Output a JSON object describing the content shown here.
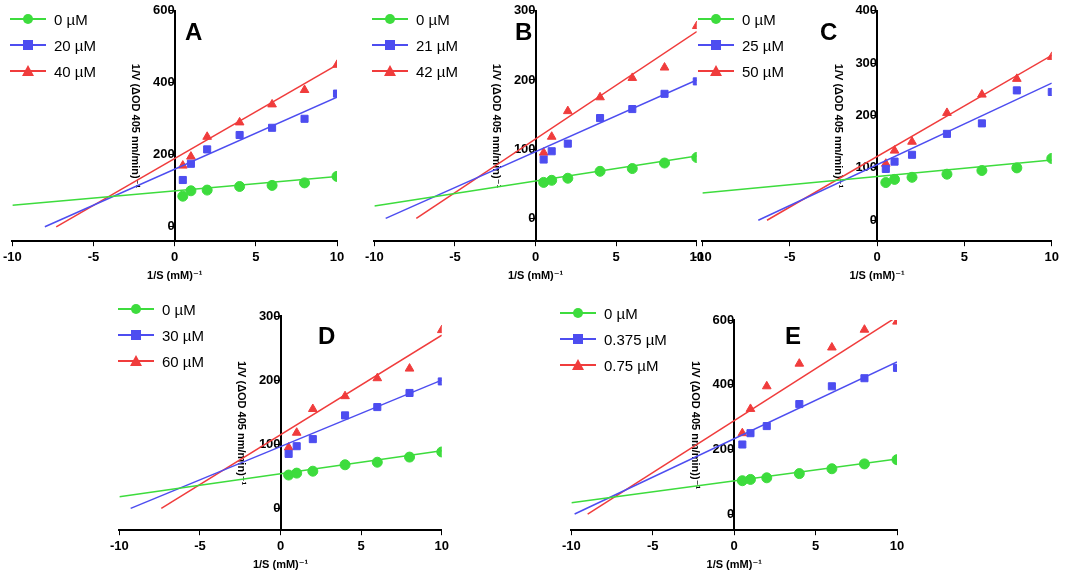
{
  "chart_data": [
    {
      "type": "scatter",
      "title": "A",
      "x_label": "1/S (mM)⁻¹",
      "y_label": "1/V (ΔOD 405 nm/min)⁻¹",
      "xlim": [
        -10,
        10
      ],
      "ylim": [
        -40,
        600
      ],
      "xticks": [
        -10,
        -5,
        0,
        5,
        10
      ],
      "yticks": [
        0,
        200,
        400,
        600
      ],
      "grid": false,
      "legend": "top-left",
      "x": [
        0.5,
        1,
        2,
        4,
        6,
        8,
        10
      ],
      "series": [
        {
          "name": "0 µM",
          "color": "#3ddc3d",
          "marker": "circle",
          "values": [
            85,
            100,
            102,
            112,
            115,
            122,
            140
          ],
          "fit_line": {
            "x": [
              -10,
              10
            ],
            "y": [
              60,
              140
            ]
          }
        },
        {
          "name": "20 µM",
          "color": "#4d4df0",
          "marker": "square",
          "values": [
            130,
            175,
            215,
            255,
            275,
            300,
            370
          ],
          "fit_line": {
            "x": [
              -8,
              10
            ],
            "y": [
              0,
              360
            ]
          }
        },
        {
          "name": "40 µM",
          "color": "#f03c3c",
          "marker": "triangle",
          "values": [
            170,
            195,
            250,
            290,
            340,
            380,
            450
          ],
          "fit_line": {
            "x": [
              -7.3,
              10
            ],
            "y": [
              0,
              450
            ]
          }
        }
      ]
    },
    {
      "type": "scatter",
      "title": "B",
      "x_label": "1/S (mM)⁻¹",
      "y_label": "1/V (ΔOD 405 nm/min)⁻¹",
      "xlim": [
        -10,
        10
      ],
      "ylim": [
        -33,
        300
      ],
      "xticks": [
        -10,
        -5,
        0,
        5,
        10
      ],
      "yticks": [
        0,
        100,
        200,
        300
      ],
      "grid": false,
      "legend": "top-left",
      "x": [
        0.5,
        1,
        2,
        4,
        6,
        8,
        10
      ],
      "series": [
        {
          "name": "0 µM",
          "color": "#3ddc3d",
          "marker": "circle",
          "values": [
            52,
            55,
            58,
            68,
            72,
            80,
            88
          ],
          "fit_line": {
            "x": [
              -10,
              10
            ],
            "y": [
              18,
              90
            ]
          }
        },
        {
          "name": "21 µM",
          "color": "#4d4df0",
          "marker": "square",
          "values": [
            85,
            97,
            108,
            145,
            158,
            180,
            198
          ],
          "fit_line": {
            "x": [
              -9.3,
              10
            ],
            "y": [
              0,
              200
            ]
          }
        },
        {
          "name": "42 µM",
          "color": "#f03c3c",
          "marker": "triangle",
          "values": [
            95,
            118,
            155,
            175,
            203,
            218,
            278
          ],
          "fit_line": {
            "x": [
              -7.4,
              10
            ],
            "y": [
              0,
              270
            ]
          }
        }
      ]
    },
    {
      "type": "scatter",
      "title": "C",
      "x_label": "1/S (mM)⁻¹",
      "y_label": "1/V (ΔOD 405 nm/min)⁻¹",
      "xlim": [
        -10,
        10
      ],
      "ylim": [
        -40,
        400
      ],
      "xticks": [
        -10,
        -5,
        0,
        5,
        10
      ],
      "yticks": [
        0,
        100,
        200,
        300,
        400
      ],
      "grid": false,
      "legend": "top-left",
      "x": [
        0.5,
        1,
        2,
        4,
        6,
        8,
        10
      ],
      "series": [
        {
          "name": "0 µM",
          "color": "#3ddc3d",
          "marker": "circle",
          "values": [
            72,
            78,
            82,
            88,
            95,
            100,
            118
          ],
          "fit_line": {
            "x": [
              -10,
              10
            ],
            "y": [
              52,
              115
            ]
          }
        },
        {
          "name": "25 µM",
          "color": "#4d4df0",
          "marker": "square",
          "values": [
            98,
            112,
            125,
            165,
            185,
            248,
            245
          ],
          "fit_line": {
            "x": [
              -6.8,
              10
            ],
            "y": [
              0,
              262
            ]
          }
        },
        {
          "name": "50 µM",
          "color": "#f03c3c",
          "marker": "triangle",
          "values": [
            108,
            133,
            150,
            205,
            240,
            270,
            312
          ],
          "fit_line": {
            "x": [
              -6.3,
              10
            ],
            "y": [
              0,
              315
            ]
          }
        }
      ]
    },
    {
      "type": "scatter",
      "title": "D",
      "x_label": "1/S (mM)⁻¹",
      "y_label": "1/V (ΔOD 405 nm/min)⁻¹",
      "xlim": [
        -10,
        10
      ],
      "ylim": [
        -34,
        300
      ],
      "xticks": [
        -10,
        -5,
        0,
        5,
        10
      ],
      "yticks": [
        0,
        100,
        200,
        300
      ],
      "grid": false,
      "legend": "top-left",
      "x": [
        0.5,
        1,
        2,
        4,
        6,
        8,
        10
      ],
      "series": [
        {
          "name": "0 µM",
          "color": "#3ddc3d",
          "marker": "circle",
          "values": [
            52,
            55,
            58,
            68,
            72,
            80,
            88
          ],
          "fit_line": {
            "x": [
              -10,
              10
            ],
            "y": [
              18,
              90
            ]
          }
        },
        {
          "name": "30 µM",
          "color": "#4d4df0",
          "marker": "square",
          "values": [
            85,
            97,
            108,
            145,
            158,
            180,
            198
          ],
          "fit_line": {
            "x": [
              -9.3,
              10
            ],
            "y": [
              0,
              200
            ]
          }
        },
        {
          "name": "60 µM",
          "color": "#f03c3c",
          "marker": "triangle",
          "values": [
            95,
            118,
            155,
            175,
            203,
            218,
            278
          ],
          "fit_line": {
            "x": [
              -7.4,
              10
            ],
            "y": [
              0,
              270
            ]
          }
        }
      ]
    },
    {
      "type": "scatter",
      "title": "E",
      "x_label": "1/S (mM)⁻¹",
      "y_label": "1/V (ΔOD 405 nm/min))⁻¹",
      "xlim": [
        -10,
        10
      ],
      "ylim": [
        -50,
        600
      ],
      "xticks": [
        -10,
        -5,
        0,
        5,
        10
      ],
      "yticks": [
        0,
        200,
        400,
        600
      ],
      "grid": false,
      "legend": "top-left",
      "x": [
        0.5,
        1,
        2,
        4,
        6,
        8,
        10
      ],
      "series": [
        {
          "name": "0 µM",
          "color": "#3ddc3d",
          "marker": "circle",
          "values": [
            103,
            107,
            112,
            125,
            140,
            155,
            168
          ],
          "fit_line": {
            "x": [
              -10,
              10
            ],
            "y": [
              35,
              170
            ]
          }
        },
        {
          "name": "0.375 µM",
          "color": "#4d4df0",
          "marker": "square",
          "values": [
            215,
            250,
            272,
            340,
            395,
            420,
            452
          ],
          "fit_line": {
            "x": [
              -9.8,
              10
            ],
            "y": [
              0,
              470
            ]
          }
        },
        {
          "name": "0.75 µM",
          "color": "#f03c3c",
          "marker": "triangle",
          "values": [
            250,
            325,
            395,
            465,
            515,
            570,
            595
          ],
          "fit_line": {
            "x": [
              -9,
              10
            ],
            "y": [
              0,
              610
            ]
          }
        }
      ]
    }
  ]
}
